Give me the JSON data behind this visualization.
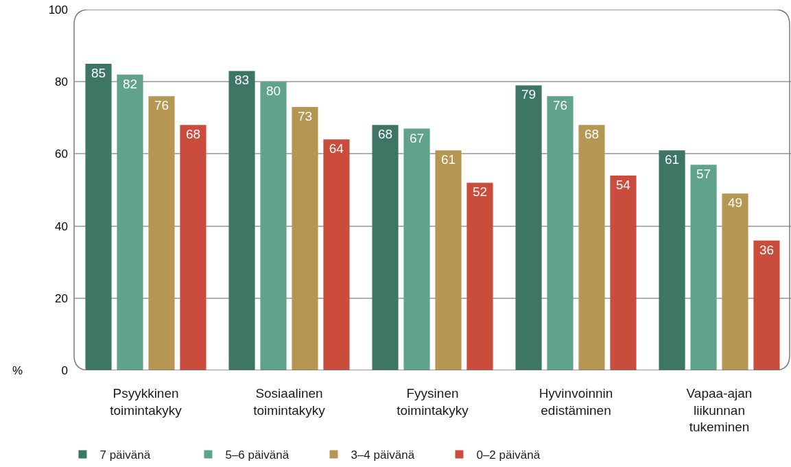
{
  "chart_data": {
    "type": "bar",
    "ylabel": "%",
    "categories": [
      "Psyykkinen toimintakyky",
      "Sosiaalinen toimintakyky",
      "Fyysinen toimintakyky",
      "Hyvinvoinnin edistäminen",
      "Vapaa-ajan liikunnan tukeminen"
    ],
    "series": [
      {
        "name": "7 päivänä",
        "color": "#3d7665",
        "values": [
          85,
          83,
          68,
          79,
          61
        ]
      },
      {
        "name": "5–6 päivänä",
        "color": "#5ea38a",
        "values": [
          82,
          80,
          67,
          76,
          57
        ]
      },
      {
        "name": "3–4 päivänä",
        "color": "#b59653",
        "values": [
          76,
          73,
          61,
          68,
          49
        ]
      },
      {
        "name": "0–2 päivänä",
        "color": "#c94c3c",
        "values": [
          68,
          64,
          52,
          54,
          36
        ]
      }
    ],
    "ylim": [
      0,
      100
    ],
    "yticks": [
      0,
      20,
      40,
      60,
      80,
      100
    ],
    "grid": "y",
    "legend": "bottom",
    "data_labels": true
  }
}
